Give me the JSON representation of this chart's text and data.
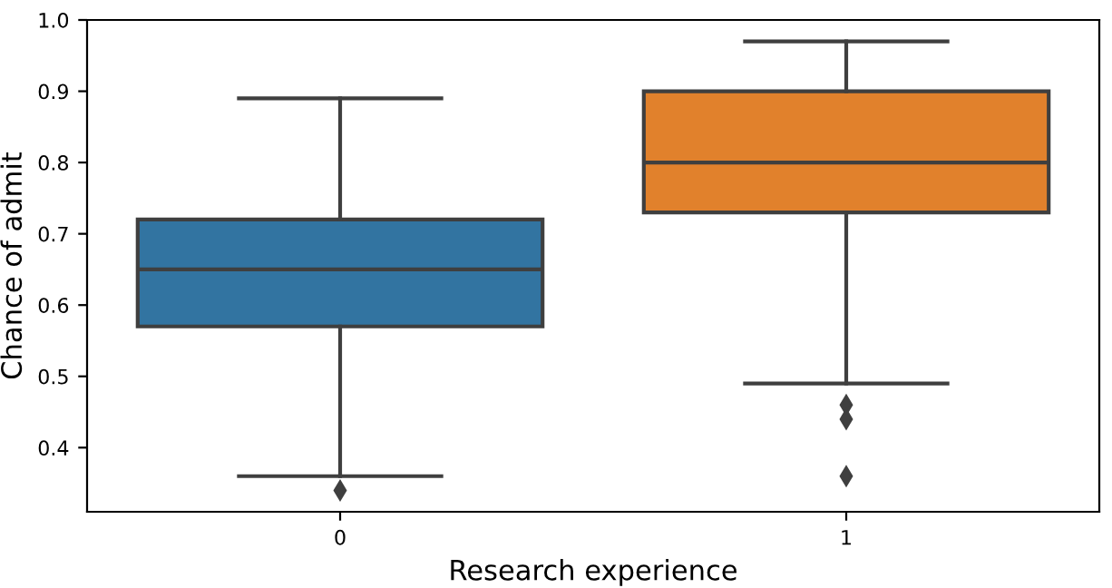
{
  "chart_data": {
    "type": "box",
    "xlabel": "Research experience",
    "ylabel": "Chance of admit",
    "categories": [
      "0",
      "1"
    ],
    "boxes": [
      {
        "low": 0.36,
        "q1": 0.57,
        "median": 0.65,
        "q3": 0.72,
        "high": 0.89,
        "outliers": [
          0.34
        ]
      },
      {
        "low": 0.49,
        "q1": 0.73,
        "median": 0.8,
        "q3": 0.9,
        "high": 0.97,
        "outliers": [
          0.46,
          0.44,
          0.36
        ]
      }
    ],
    "colors": [
      "#3274a1",
      "#e1812c"
    ],
    "ylim": [
      0.31,
      1.0
    ],
    "yticks": [
      0.4,
      0.5,
      0.6,
      0.7,
      0.8,
      0.9,
      {
        "value": 1.0,
        "label": "1.0"
      }
    ],
    "marker": "diamond",
    "grid": false,
    "legend": false
  }
}
